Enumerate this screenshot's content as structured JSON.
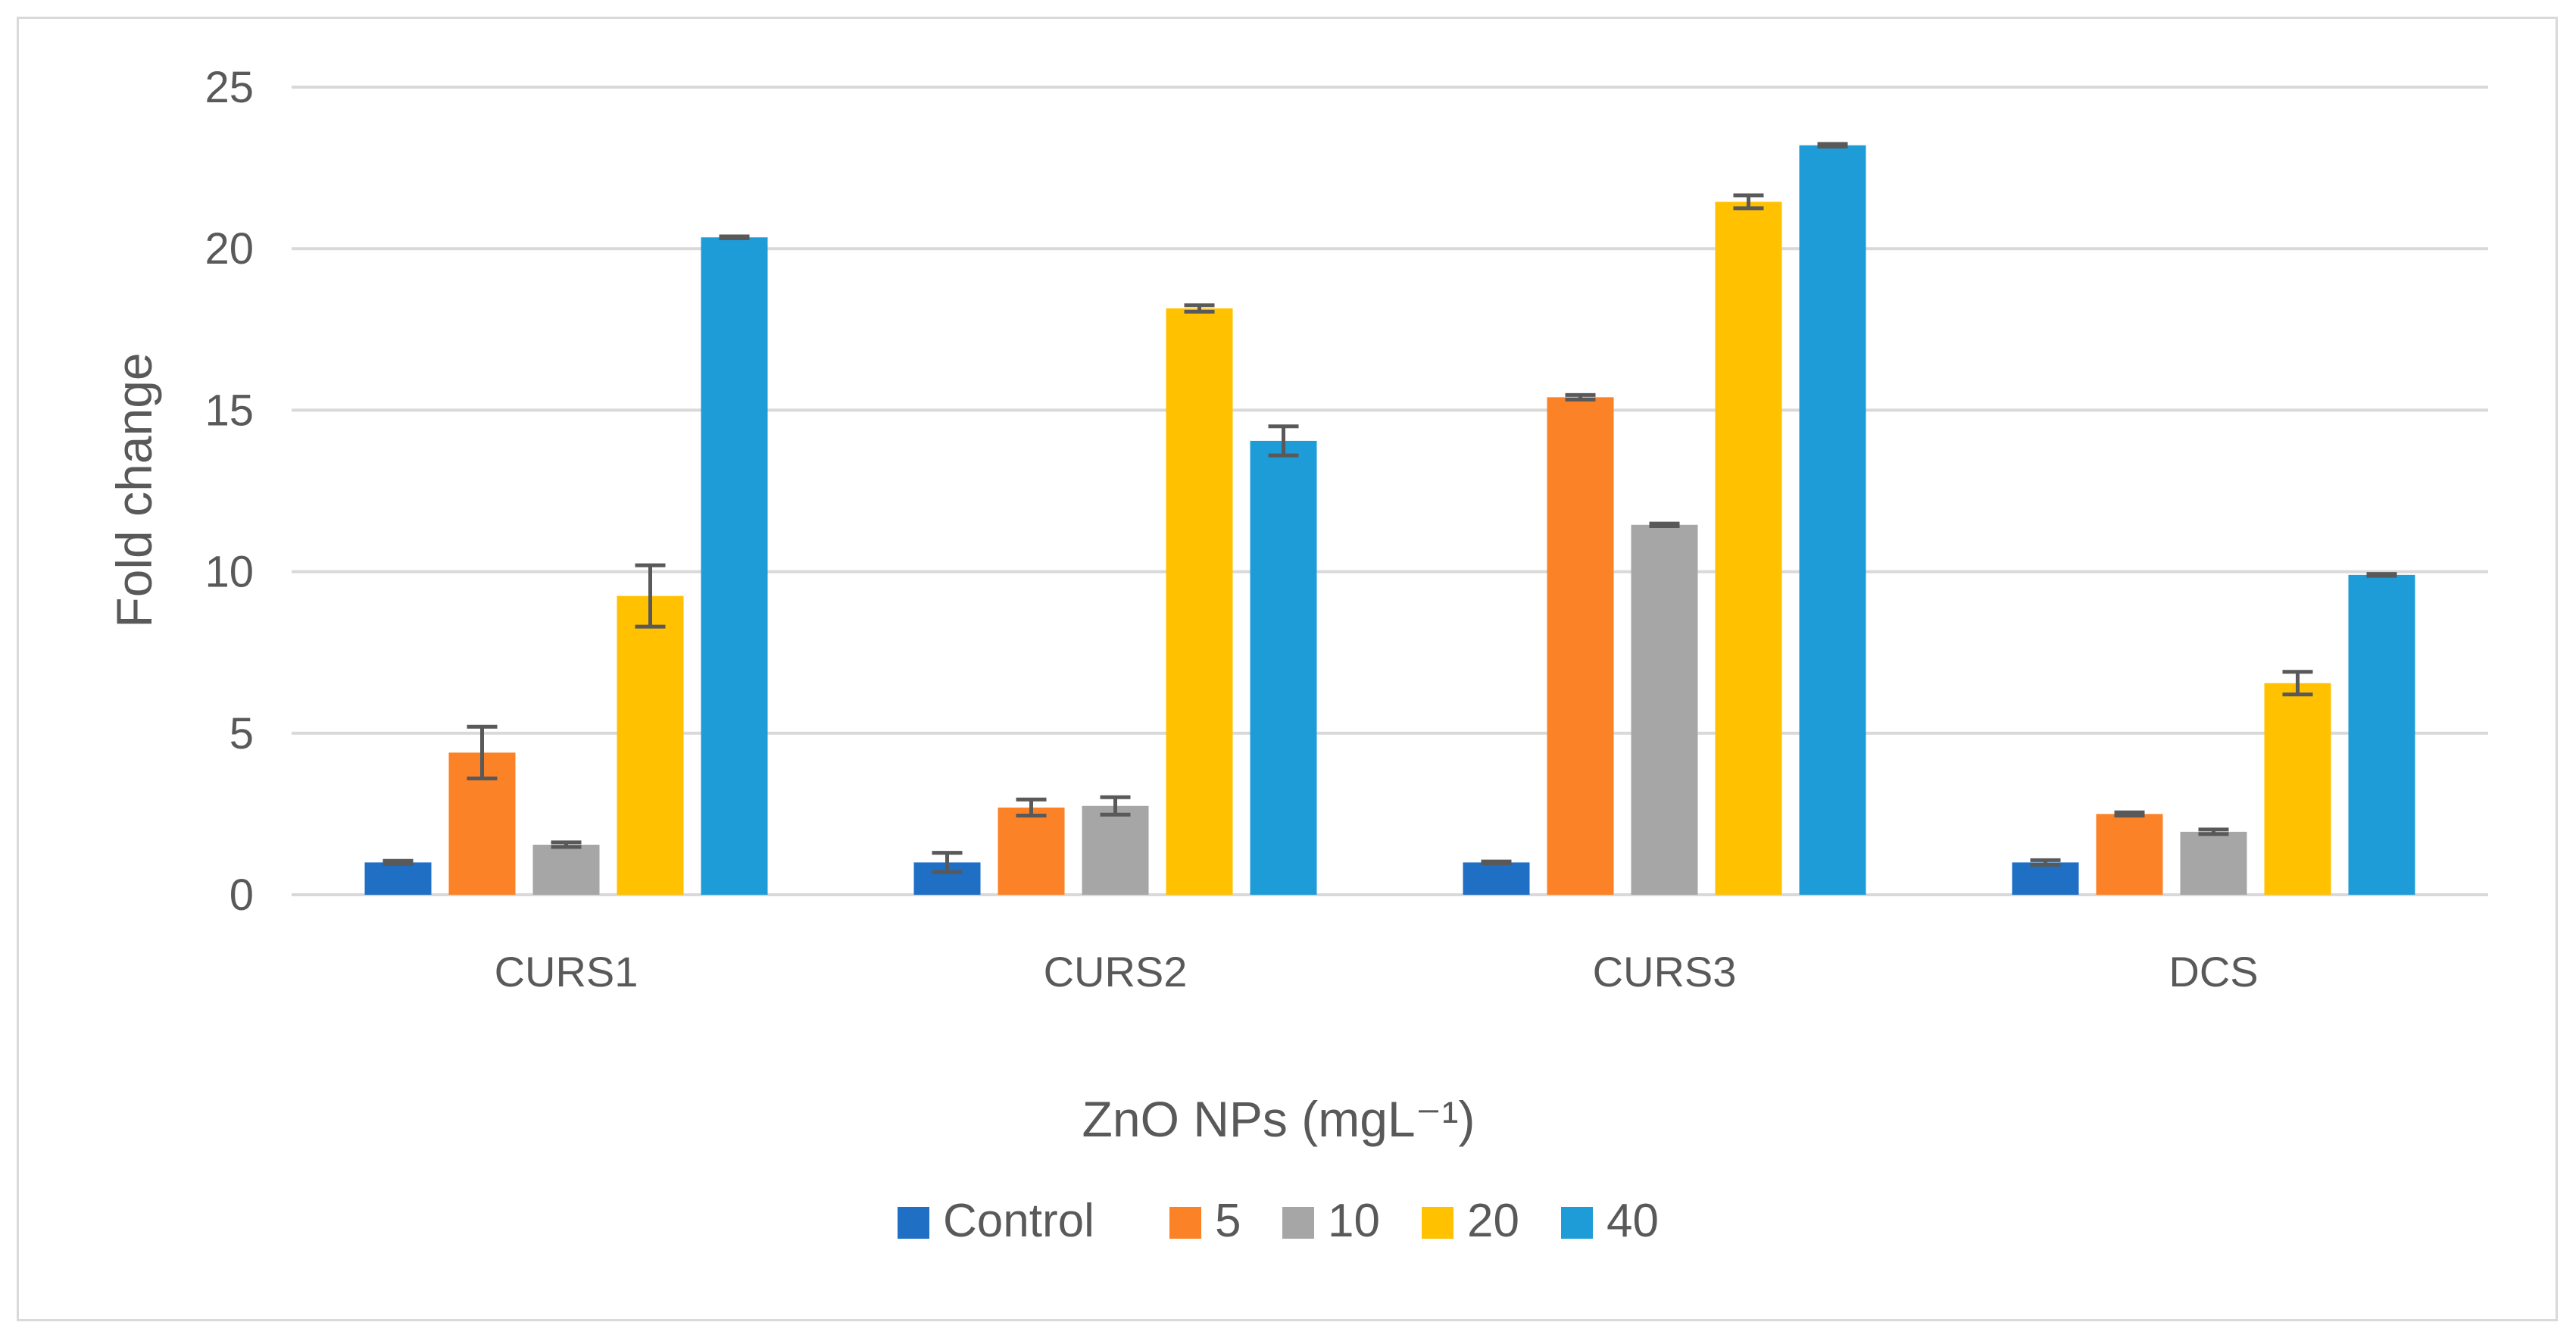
{
  "chart_data": {
    "type": "bar",
    "title": "",
    "xlabel": "ZnO NPs (mgL⁻¹)",
    "ylabel": "Fold change",
    "categories": [
      "CURS1",
      "CURS2",
      "CURS3",
      "DCS"
    ],
    "ylim": [
      0,
      25
    ],
    "yticks": [
      0,
      5,
      10,
      15,
      20,
      25
    ],
    "grid": true,
    "legend_position": "bottom",
    "series": [
      {
        "name": "Control",
        "color": "#1f6fc5",
        "values": [
          1.0,
          1.0,
          1.0,
          1.0
        ],
        "errors": [
          0.05,
          0.3,
          0.03,
          0.07
        ]
      },
      {
        "name": "5",
        "color": "#fb8226",
        "values": [
          4.4,
          2.7,
          15.4,
          2.5
        ],
        "errors": [
          0.8,
          0.25,
          0.07,
          0.05
        ]
      },
      {
        "name": "10",
        "color": "#a6a6a6",
        "values": [
          1.55,
          2.75,
          11.45,
          1.95
        ],
        "errors": [
          0.07,
          0.27,
          0.04,
          0.07
        ]
      },
      {
        "name": "20",
        "color": "#ffc100",
        "values": [
          9.25,
          18.15,
          21.45,
          6.55
        ],
        "errors": [
          0.95,
          0.1,
          0.2,
          0.35
        ]
      },
      {
        "name": "40",
        "color": "#1e9cd8",
        "values": [
          20.35,
          14.05,
          23.2,
          9.9
        ],
        "errors": [
          0.03,
          0.45,
          0.04,
          0.03
        ]
      }
    ]
  }
}
